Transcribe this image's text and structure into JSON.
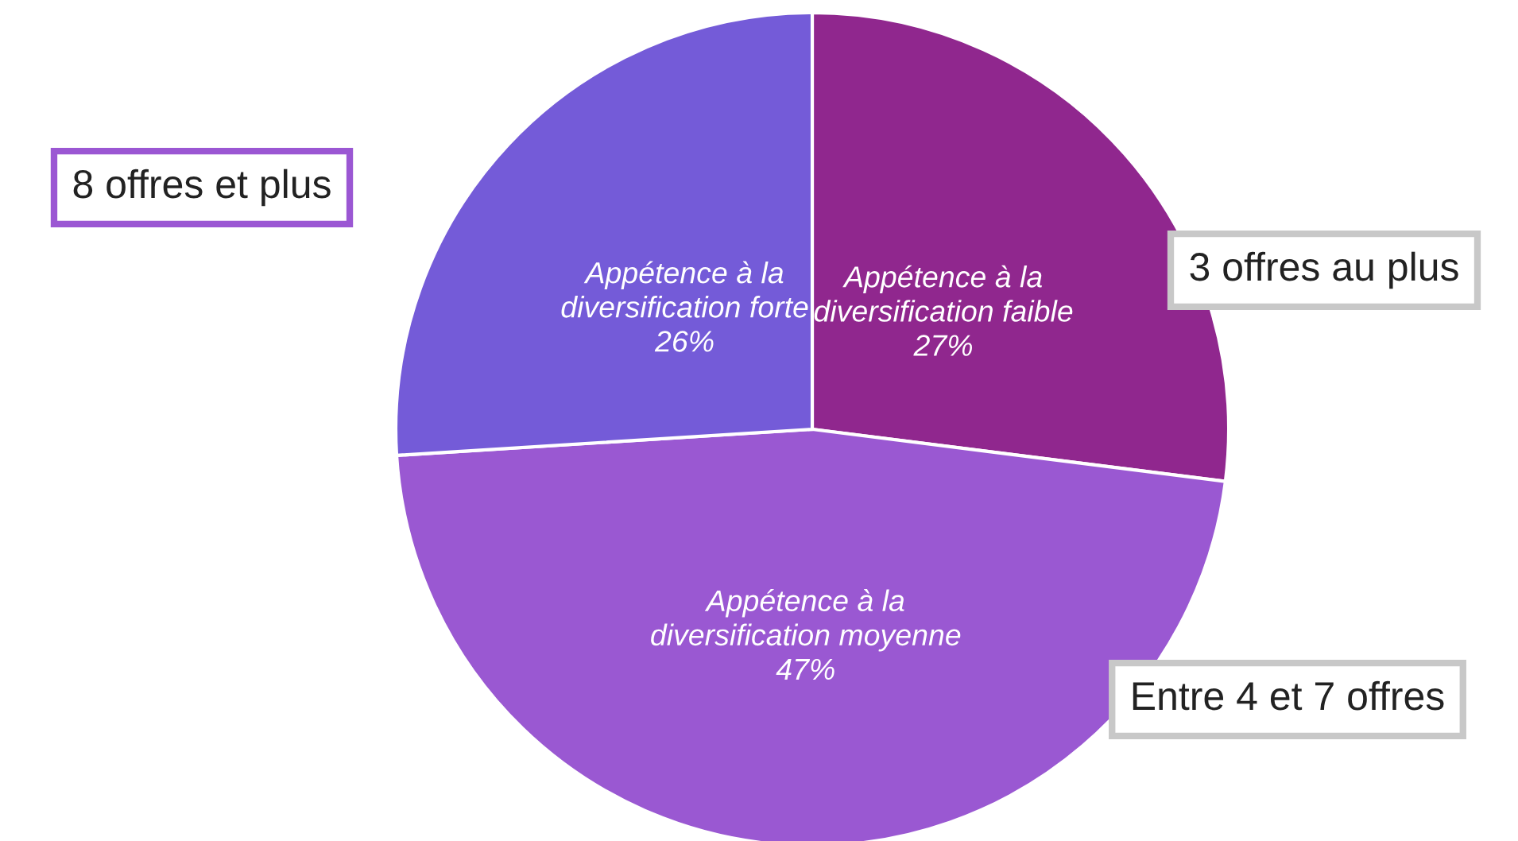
{
  "chart_data": {
    "type": "pie",
    "categories": [
      "Appétence à la\ndiversification faible",
      "Appétence à la\ndiversification moyenne",
      "Appétence à la\ndiversification forte"
    ],
    "values": [
      27,
      47,
      26
    ],
    "value_labels": [
      "27%",
      "47%",
      "26%"
    ],
    "colors": [
      "#90278e",
      "#9a58d2",
      "#745bd8"
    ],
    "annotations": [
      "3 offres au plus",
      "Entre 4 et 7 offres",
      "8 offres et plus"
    ]
  }
}
